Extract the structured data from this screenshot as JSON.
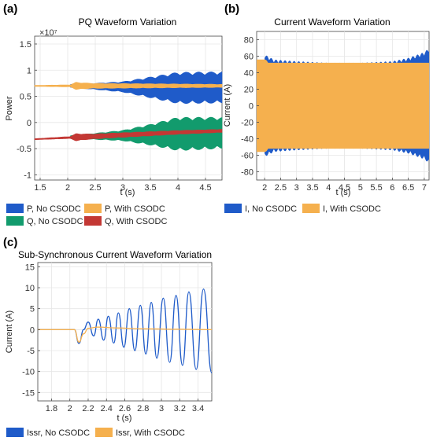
{
  "panels": [
    {
      "id": "a",
      "panel_label": "(a)",
      "title": "PQ Waveform Variation",
      "multiplier": "×10⁷",
      "xlabel": "t (s)",
      "ylabel": "Power",
      "xticks": [
        "1.5",
        "2",
        "2.5",
        "3",
        "3.5",
        "4",
        "4.5"
      ],
      "yticks": [
        "-1",
        "-0.5",
        "0",
        "0.5",
        "1",
        "1.5"
      ],
      "legend": [
        {
          "label": "P, No CSODC",
          "color": "#1f5bc9"
        },
        {
          "label": "P, With CSODC",
          "color": "#f5b04e"
        },
        {
          "label": "Q, No CSODC",
          "color": "#129b6d"
        },
        {
          "label": "Q, With CSODC",
          "color": "#c33834"
        }
      ]
    },
    {
      "id": "b",
      "panel_label": "(b)",
      "title": "Current Waveform Variation",
      "xlabel": "t (s)",
      "ylabel": "Current (A)",
      "xticks": [
        "2",
        "2.5",
        "3",
        "3.5",
        "4",
        "4.5",
        "5",
        "5.5",
        "6",
        "6.5",
        "7"
      ],
      "yticks": [
        "-80",
        "-60",
        "-40",
        "-20",
        "0",
        "20",
        "40",
        "60",
        "80"
      ],
      "legend": [
        {
          "label": "I, No CSODC",
          "color": "#1f5bc9"
        },
        {
          "label": "I, With CSODC",
          "color": "#f5b04e"
        }
      ]
    },
    {
      "id": "c",
      "panel_label": "(c)",
      "title": "Sub-Synchronous Current Waveform Variation",
      "xlabel": "t (s)",
      "ylabel": "Current (A)",
      "xticks": [
        "1.8",
        "2",
        "2.2",
        "2.4",
        "2.6",
        "2.8",
        "3",
        "3.2",
        "3.4"
      ],
      "yticks": [
        "-15",
        "-10",
        "-5",
        "0",
        "5",
        "10",
        "15"
      ],
      "legend": [
        {
          "label": "Issr, No CSODC",
          "color": "#1f5bc9"
        },
        {
          "label": "Issr, With CSODC",
          "color": "#f5b04e"
        }
      ]
    }
  ],
  "chart_data": [
    {
      "type": "area",
      "title": "PQ Waveform Variation",
      "xlabel": "t (s)",
      "ylabel": "Power",
      "y_multiplier": "×10⁷",
      "xlim": [
        1.4,
        4.8
      ],
      "ylim": [
        -1.1,
        1.65
      ],
      "grid": true,
      "legend_position": "bottom",
      "series": [
        {
          "name": "P, No CSODC",
          "color": "#1f5bc9",
          "t_start": 2.05,
          "t_end": 4.8,
          "center": [
            [
              2.05,
              0.7
            ],
            [
              3.0,
              0.68
            ],
            [
              4.0,
              0.66
            ],
            [
              4.8,
              0.67
            ]
          ],
          "envelope_halfwidth": [
            [
              2.05,
              0.03
            ],
            [
              2.5,
              0.06
            ],
            [
              3.0,
              0.1
            ],
            [
              3.5,
              0.2
            ],
            [
              4.0,
              0.3
            ],
            [
              4.8,
              0.3
            ]
          ]
        },
        {
          "name": "P, With CSODC",
          "color": "#f5b04e",
          "t_start": 1.4,
          "t_end": 4.8,
          "center": [
            [
              1.4,
              0.7
            ],
            [
              4.8,
              0.7
            ]
          ],
          "envelope_halfwidth": [
            [
              1.4,
              0.01
            ],
            [
              2.05,
              0.02
            ],
            [
              2.15,
              0.07
            ],
            [
              2.4,
              0.05
            ],
            [
              4.8,
              0.03
            ]
          ]
        },
        {
          "name": "Q, No CSODC",
          "color": "#129b6d",
          "t_start": 2.05,
          "t_end": 4.8,
          "center": [
            [
              2.05,
              -0.28
            ],
            [
              3.0,
              -0.25
            ],
            [
              4.0,
              -0.22
            ],
            [
              4.8,
              -0.2
            ]
          ],
          "envelope_halfwidth": [
            [
              2.05,
              0.03
            ],
            [
              2.5,
              0.06
            ],
            [
              3.0,
              0.1
            ],
            [
              3.5,
              0.2
            ],
            [
              4.0,
              0.32
            ],
            [
              4.8,
              0.3
            ]
          ]
        },
        {
          "name": "Q, With CSODC",
          "color": "#c33834",
          "t_start": 1.4,
          "t_end": 4.8,
          "center": [
            [
              1.4,
              -0.32
            ],
            [
              2.0,
              -0.29
            ],
            [
              3.0,
              -0.24
            ],
            [
              4.0,
              -0.19
            ],
            [
              4.8,
              -0.16
            ]
          ],
          "envelope_halfwidth": [
            [
              1.4,
              0.01
            ],
            [
              2.05,
              0.02
            ],
            [
              2.15,
              0.07
            ],
            [
              2.4,
              0.05
            ],
            [
              4.8,
              0.03
            ]
          ]
        }
      ]
    },
    {
      "type": "area",
      "title": "Current Waveform Variation",
      "xlabel": "t (s)",
      "ylabel": "Current (A)",
      "xlim": [
        1.75,
        7.15
      ],
      "ylim": [
        -90,
        90
      ],
      "grid": true,
      "legend_position": "bottom",
      "series": [
        {
          "name": "I, No CSODC",
          "color": "#1f5bc9",
          "envelope": [
            [
              2.0,
              62
            ],
            [
              2.3,
              56
            ],
            [
              3.0,
              54
            ],
            [
              4.0,
              52
            ],
            [
              5.0,
              52
            ],
            [
              6.0,
              54
            ],
            [
              6.5,
              58
            ],
            [
              7.0,
              65
            ],
            [
              7.15,
              70
            ]
          ]
        },
        {
          "name": "I, With CSODC",
          "color": "#f5b04e",
          "envelope": [
            [
              1.75,
              56
            ],
            [
              2.05,
              56
            ],
            [
              2.1,
              52
            ],
            [
              7.15,
              52
            ]
          ]
        }
      ]
    },
    {
      "type": "line",
      "title": "Sub-Synchronous Current Waveform Variation",
      "xlabel": "t (s)",
      "ylabel": "Current (A)",
      "xlim": [
        1.65,
        3.55
      ],
      "ylim": [
        -17,
        16
      ],
      "grid": true,
      "legend_position": "bottom",
      "series": [
        {
          "name": "Issr, No CSODC",
          "color": "#1f5bc9",
          "points": [
            [
              1.65,
              0
            ],
            [
              2.05,
              0
            ],
            [
              2.1,
              -3.3
            ],
            [
              2.15,
              0
            ],
            [
              2.2,
              1.8
            ],
            [
              2.26,
              -1.5
            ],
            [
              2.31,
              2.5
            ],
            [
              2.37,
              -2.5
            ],
            [
              2.42,
              3.2
            ],
            [
              2.48,
              -3.2
            ],
            [
              2.53,
              4
            ],
            [
              2.59,
              -4.2
            ],
            [
              2.65,
              5
            ],
            [
              2.71,
              -5
            ],
            [
              2.77,
              5.8
            ],
            [
              2.83,
              -5.8
            ],
            [
              2.89,
              6.5
            ],
            [
              2.95,
              -6.8
            ],
            [
              3.02,
              7.5
            ],
            [
              3.09,
              -7.8
            ],
            [
              3.16,
              8.2
            ],
            [
              3.23,
              -8.5
            ],
            [
              3.3,
              9
            ],
            [
              3.38,
              -9.5
            ],
            [
              3.46,
              9.7
            ],
            [
              3.55,
              -10.3
            ]
          ]
        },
        {
          "name": "Issr, With CSODC",
          "color": "#f5b04e",
          "points": [
            [
              1.65,
              0
            ],
            [
              2.05,
              0
            ],
            [
              2.1,
              -3
            ],
            [
              2.15,
              -1
            ],
            [
              2.2,
              0.3
            ],
            [
              2.3,
              0.6
            ],
            [
              2.5,
              0.4
            ],
            [
              2.8,
              0.2
            ],
            [
              3.2,
              0.1
            ],
            [
              3.55,
              0
            ]
          ]
        }
      ]
    }
  ]
}
